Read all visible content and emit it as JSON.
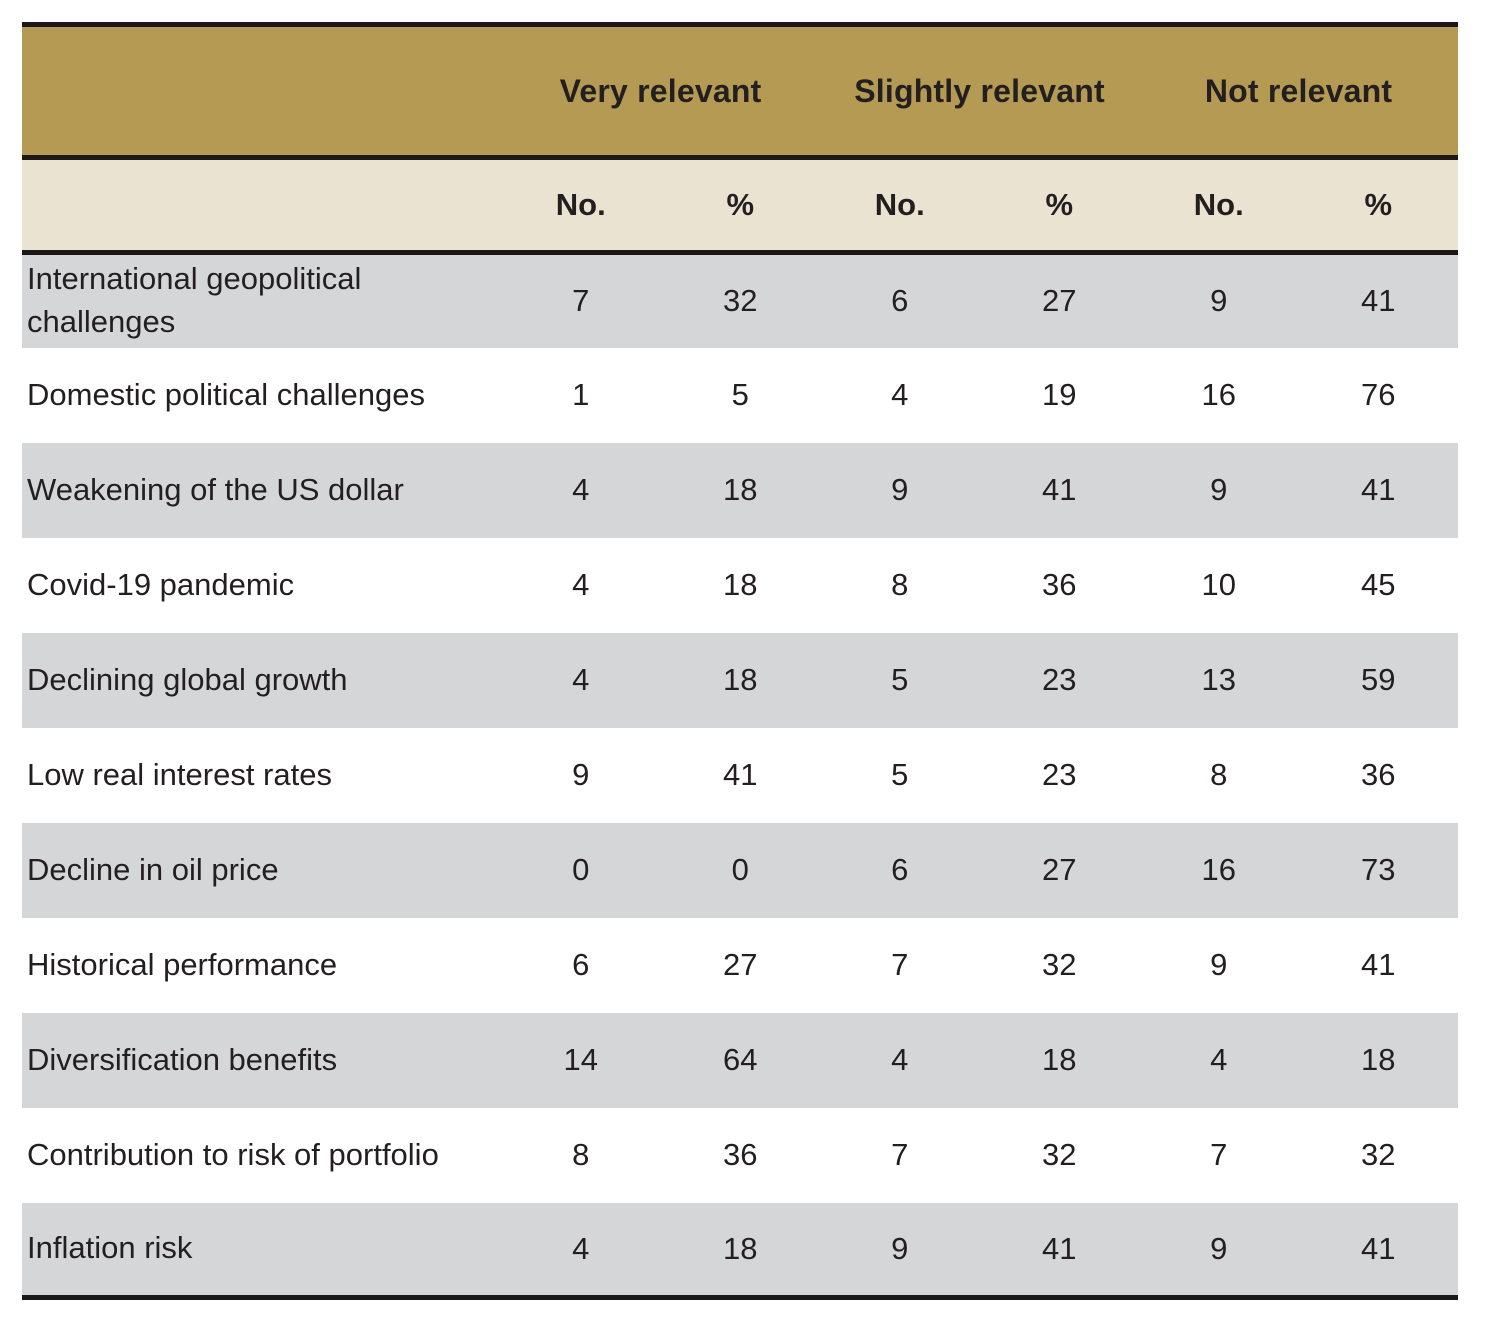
{
  "colors": {
    "header_gold": "#b49a52",
    "subheader_cream": "#eae3d1",
    "row_gray": "#d5d6d8",
    "row_white": "#ffffff",
    "rule_black": "#1b1816",
    "text": "#231f20"
  },
  "chart_data": {
    "type": "table",
    "column_groups": [
      {
        "label": "Very relevant",
        "sub": [
          "No.",
          "%"
        ]
      },
      {
        "label": "Slightly relevant",
        "sub": [
          "No.",
          "%"
        ]
      },
      {
        "label": "Not relevant",
        "sub": [
          "No.",
          "%"
        ]
      }
    ],
    "rows": [
      {
        "label": "International geopolitical challenges",
        "values": [
          7,
          32,
          6,
          27,
          9,
          41
        ]
      },
      {
        "label": "Domestic political challenges",
        "values": [
          1,
          5,
          4,
          19,
          16,
          76
        ]
      },
      {
        "label": "Weakening of the US dollar",
        "values": [
          4,
          18,
          9,
          41,
          9,
          41
        ]
      },
      {
        "label": "Covid-19 pandemic",
        "values": [
          4,
          18,
          8,
          36,
          10,
          45
        ]
      },
      {
        "label": "Declining global growth",
        "values": [
          4,
          18,
          5,
          23,
          13,
          59
        ]
      },
      {
        "label": "Low real interest rates",
        "values": [
          9,
          41,
          5,
          23,
          8,
          36
        ]
      },
      {
        "label": "Decline in oil price",
        "values": [
          0,
          0,
          6,
          27,
          16,
          73
        ]
      },
      {
        "label": "Historical performance",
        "values": [
          6,
          27,
          7,
          32,
          9,
          41
        ]
      },
      {
        "label": "Diversification benefits",
        "values": [
          14,
          64,
          4,
          18,
          4,
          18
        ]
      },
      {
        "label": "Contribution to risk of portfolio",
        "values": [
          8,
          36,
          7,
          32,
          7,
          32
        ]
      },
      {
        "label": "Inflation risk",
        "values": [
          4,
          18,
          9,
          41,
          9,
          41
        ]
      }
    ]
  }
}
